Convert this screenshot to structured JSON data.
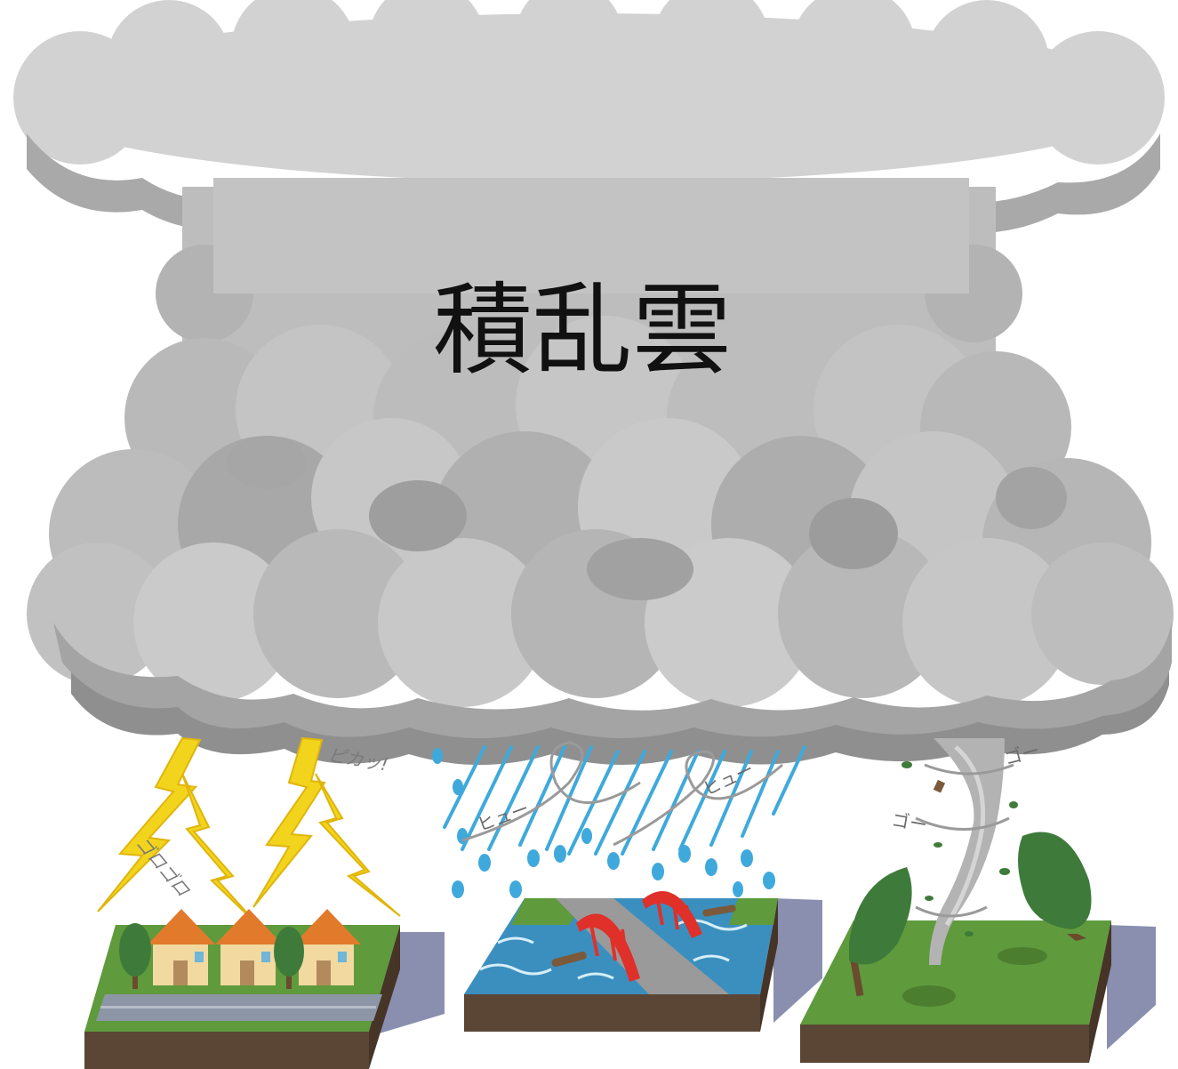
{
  "title": "積乱雲",
  "sfx": {
    "thunder_rumble": "ゴロゴロ",
    "lightning_flash": "ピカッ!",
    "wind_1": "ヒュー",
    "wind_2": "ヒュー",
    "tornado_1": "ゴー",
    "tornado_2": "ゴー"
  },
  "colors": {
    "cloud_light": "#cdcdcd",
    "cloud_mid": "#b4b4b4",
    "cloud_dark": "#8f8f8f",
    "lightning": "#f2d41c",
    "rain": "#3fa9dc",
    "grass": "#5f9a3c",
    "soil": "#5b4636",
    "water": "#3b8fbf",
    "bridge": "#e0302a",
    "roof": "#e27a2c",
    "house_wall": "#f1d9a0",
    "tree": "#3e7b3a",
    "shadow": "#8a8fb0"
  },
  "icons": {
    "cloud": "cumulonimbus-cloud-icon",
    "lightning": "lightning-bolt-icon",
    "rain": "rain-drop-icon",
    "tornado": "tornado-icon",
    "house": "house-icon",
    "tree": "tree-icon",
    "bridge": "bridge-icon"
  }
}
